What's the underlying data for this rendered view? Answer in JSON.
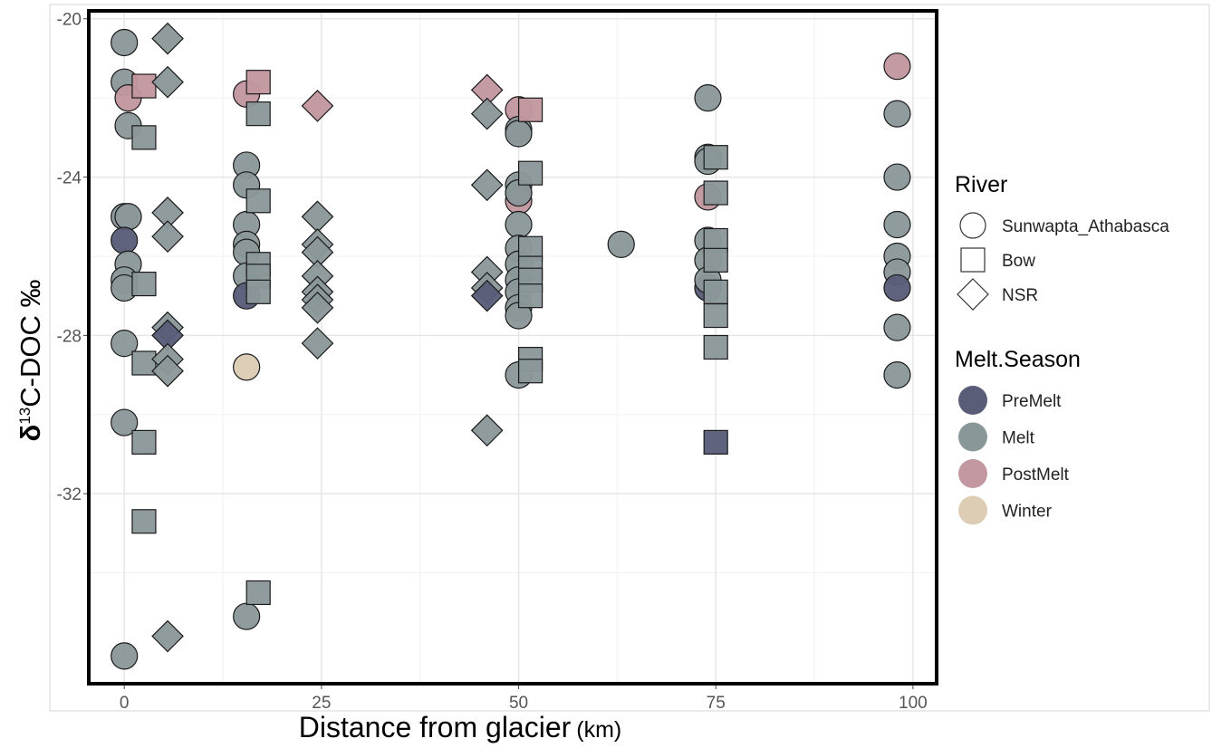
{
  "chart_data": {
    "type": "scatter",
    "title": "",
    "xlabel": "Distance from glacier",
    "xlabel_unit": "(km)",
    "ylabel": "δ13C-DOC ‰",
    "ylabel_parts": {
      "delta": "δ",
      "sup": "13",
      "rest": "C-DOC ‰"
    },
    "xlim": [
      -4.5,
      103
    ],
    "ylim": [
      -36.8,
      -19.8
    ],
    "x_ticks": [
      0,
      25,
      50,
      75,
      100
    ],
    "x_tick_labels": [
      "0",
      "25",
      "50",
      "75",
      "100"
    ],
    "y_ticks": [
      -20,
      -24,
      -28,
      -32
    ],
    "y_tick_labels": [
      "-20",
      "-24",
      "-28",
      "-32"
    ],
    "grid": true,
    "legend_position": "right",
    "legends": {
      "river": {
        "title": "River",
        "items": [
          {
            "label": "Sunwapta_Athabasca",
            "shape": "circle"
          },
          {
            "label": "Bow",
            "shape": "square"
          },
          {
            "label": "NSR",
            "shape": "diamond"
          }
        ]
      },
      "season": {
        "title": "Melt.Season",
        "items": [
          {
            "label": "PreMelt",
            "color": "#5a5d78"
          },
          {
            "label": "Melt",
            "color": "#8a9799"
          },
          {
            "label": "PostMelt",
            "color": "#c3979f"
          },
          {
            "label": "Winter",
            "color": "#dccdb4"
          }
        ]
      }
    },
    "colors": {
      "PreMelt": "#5a5d78",
      "Melt": "#8a9799",
      "PostMelt": "#c3979f",
      "Winter": "#dccdb4"
    },
    "series": [
      {
        "river": "Sunwapta_Athabasca",
        "points": [
          {
            "x": 0,
            "y": -20.6,
            "season": "Melt"
          },
          {
            "x": 0,
            "y": -21.6,
            "season": "Melt"
          },
          {
            "x": 0.5,
            "y": -22.0,
            "season": "PostMelt"
          },
          {
            "x": 0.5,
            "y": -22.7,
            "season": "Melt"
          },
          {
            "x": 0,
            "y": -25.0,
            "season": "Melt"
          },
          {
            "x": 0.5,
            "y": -25.0,
            "season": "Melt"
          },
          {
            "x": 0,
            "y": -25.6,
            "season": "PreMelt"
          },
          {
            "x": 0.5,
            "y": -26.2,
            "season": "Melt"
          },
          {
            "x": 0,
            "y": -26.6,
            "season": "Melt"
          },
          {
            "x": 0,
            "y": -26.8,
            "season": "Melt"
          },
          {
            "x": 0,
            "y": -28.2,
            "season": "Melt"
          },
          {
            "x": 0,
            "y": -30.2,
            "season": "Melt"
          },
          {
            "x": 0,
            "y": -36.1,
            "season": "Melt"
          },
          {
            "x": 15.5,
            "y": -21.9,
            "season": "PostMelt"
          },
          {
            "x": 15.5,
            "y": -23.7,
            "season": "Melt"
          },
          {
            "x": 15.5,
            "y": -24.2,
            "season": "Melt"
          },
          {
            "x": 15.5,
            "y": -25.2,
            "season": "Melt"
          },
          {
            "x": 15.5,
            "y": -25.7,
            "season": "Melt"
          },
          {
            "x": 15.5,
            "y": -25.9,
            "season": "Melt"
          },
          {
            "x": 15.5,
            "y": -26.5,
            "season": "Melt"
          },
          {
            "x": 15.5,
            "y": -27.0,
            "season": "PreMelt"
          },
          {
            "x": 15.5,
            "y": -28.8,
            "season": "Winter"
          },
          {
            "x": 15.5,
            "y": -35.1,
            "season": "Melt"
          },
          {
            "x": 50,
            "y": -22.3,
            "season": "PostMelt"
          },
          {
            "x": 50,
            "y": -22.8,
            "season": "Melt"
          },
          {
            "x": 50,
            "y": -22.9,
            "season": "Melt"
          },
          {
            "x": 50,
            "y": -24.2,
            "season": "Melt"
          },
          {
            "x": 50,
            "y": -24.4,
            "season": "Melt"
          },
          {
            "x": 50,
            "y": -24.6,
            "season": "PostMelt"
          },
          {
            "x": 50,
            "y": -24.4,
            "season": "Melt"
          },
          {
            "x": 50,
            "y": -25.2,
            "season": "Melt"
          },
          {
            "x": 50,
            "y": -25.8,
            "season": "Melt"
          },
          {
            "x": 50,
            "y": -26.2,
            "season": "Melt"
          },
          {
            "x": 50,
            "y": -26.6,
            "season": "Melt"
          },
          {
            "x": 50,
            "y": -26.9,
            "season": "Melt"
          },
          {
            "x": 50,
            "y": -27.3,
            "season": "Melt"
          },
          {
            "x": 50,
            "y": -27.5,
            "season": "Melt"
          },
          {
            "x": 50,
            "y": -29.0,
            "season": "Melt"
          },
          {
            "x": 63,
            "y": -25.7,
            "season": "Melt"
          },
          {
            "x": 74,
            "y": -22.0,
            "season": "Melt"
          },
          {
            "x": 74,
            "y": -23.5,
            "season": "Melt"
          },
          {
            "x": 74,
            "y": -23.6,
            "season": "Melt"
          },
          {
            "x": 74,
            "y": -24.5,
            "season": "PostMelt"
          },
          {
            "x": 74,
            "y": -25.6,
            "season": "Melt"
          },
          {
            "x": 74,
            "y": -26.1,
            "season": "Melt"
          },
          {
            "x": 74,
            "y": -26.8,
            "season": "PreMelt"
          },
          {
            "x": 74,
            "y": -26.6,
            "season": "Melt"
          },
          {
            "x": 98,
            "y": -21.2,
            "season": "PostMelt"
          },
          {
            "x": 98,
            "y": -22.4,
            "season": "Melt"
          },
          {
            "x": 98,
            "y": -24.0,
            "season": "Melt"
          },
          {
            "x": 98,
            "y": -25.2,
            "season": "Melt"
          },
          {
            "x": 98,
            "y": -26.0,
            "season": "Melt"
          },
          {
            "x": 98,
            "y": -26.4,
            "season": "Melt"
          },
          {
            "x": 98,
            "y": -26.8,
            "season": "PreMelt"
          },
          {
            "x": 98,
            "y": -27.8,
            "season": "Melt"
          },
          {
            "x": 98,
            "y": -29.0,
            "season": "Melt"
          }
        ]
      },
      {
        "river": "Bow",
        "points": [
          {
            "x": 2.5,
            "y": -21.7,
            "season": "PostMelt"
          },
          {
            "x": 2.5,
            "y": -23.0,
            "season": "Melt"
          },
          {
            "x": 2.5,
            "y": -26.7,
            "season": "Melt"
          },
          {
            "x": 2.5,
            "y": -28.7,
            "season": "Melt"
          },
          {
            "x": 2.5,
            "y": -30.7,
            "season": "Melt"
          },
          {
            "x": 2.5,
            "y": -32.7,
            "season": "Melt"
          },
          {
            "x": 17,
            "y": -21.6,
            "season": "PostMelt"
          },
          {
            "x": 17,
            "y": -22.4,
            "season": "Melt"
          },
          {
            "x": 17,
            "y": -24.6,
            "season": "Melt"
          },
          {
            "x": 17,
            "y": -26.2,
            "season": "Melt"
          },
          {
            "x": 17,
            "y": -26.5,
            "season": "Melt"
          },
          {
            "x": 17,
            "y": -26.9,
            "season": "Melt"
          },
          {
            "x": 17,
            "y": -34.5,
            "season": "Melt"
          },
          {
            "x": 51.5,
            "y": -22.3,
            "season": "PostMelt"
          },
          {
            "x": 51.5,
            "y": -23.9,
            "season": "Melt"
          },
          {
            "x": 51.5,
            "y": -25.8,
            "season": "Melt"
          },
          {
            "x": 51.5,
            "y": -26.3,
            "season": "Melt"
          },
          {
            "x": 51.5,
            "y": -26.6,
            "season": "Melt"
          },
          {
            "x": 51.5,
            "y": -27.0,
            "season": "Melt"
          },
          {
            "x": 51.5,
            "y": -28.6,
            "season": "Melt"
          },
          {
            "x": 51.5,
            "y": -28.9,
            "season": "Melt"
          },
          {
            "x": 75,
            "y": -23.5,
            "season": "Melt"
          },
          {
            "x": 75,
            "y": -24.4,
            "season": "Melt"
          },
          {
            "x": 75,
            "y": -25.6,
            "season": "Melt"
          },
          {
            "x": 75,
            "y": -26.1,
            "season": "Melt"
          },
          {
            "x": 75,
            "y": -26.9,
            "season": "Melt"
          },
          {
            "x": 75,
            "y": -27.5,
            "season": "Melt"
          },
          {
            "x": 75,
            "y": -28.3,
            "season": "Melt"
          },
          {
            "x": 75,
            "y": -30.7,
            "season": "PreMelt"
          }
        ]
      },
      {
        "river": "NSR",
        "points": [
          {
            "x": 5.5,
            "y": -20.5,
            "season": "Melt"
          },
          {
            "x": 5.5,
            "y": -21.6,
            "season": "Melt"
          },
          {
            "x": 5.5,
            "y": -24.9,
            "season": "Melt"
          },
          {
            "x": 5.5,
            "y": -25.5,
            "season": "Melt"
          },
          {
            "x": 5.5,
            "y": -27.8,
            "season": "Melt"
          },
          {
            "x": 5.5,
            "y": -28.0,
            "season": "PreMelt"
          },
          {
            "x": 5.5,
            "y": -28.6,
            "season": "Melt"
          },
          {
            "x": 5.5,
            "y": -28.9,
            "season": "Melt"
          },
          {
            "x": 5.5,
            "y": -35.6,
            "season": "Melt"
          },
          {
            "x": 24.5,
            "y": -22.2,
            "season": "PostMelt"
          },
          {
            "x": 24.5,
            "y": -25.0,
            "season": "Melt"
          },
          {
            "x": 24.5,
            "y": -25.7,
            "season": "Melt"
          },
          {
            "x": 24.5,
            "y": -25.9,
            "season": "Melt"
          },
          {
            "x": 24.5,
            "y": -26.5,
            "season": "Melt"
          },
          {
            "x": 24.5,
            "y": -26.9,
            "season": "Melt"
          },
          {
            "x": 24.5,
            "y": -27.1,
            "season": "Melt"
          },
          {
            "x": 24.5,
            "y": -27.3,
            "season": "Melt"
          },
          {
            "x": 24.5,
            "y": -28.2,
            "season": "Melt"
          },
          {
            "x": 46,
            "y": -21.8,
            "season": "PostMelt"
          },
          {
            "x": 46,
            "y": -22.4,
            "season": "Melt"
          },
          {
            "x": 46,
            "y": -24.2,
            "season": "Melt"
          },
          {
            "x": 46,
            "y": -26.4,
            "season": "Melt"
          },
          {
            "x": 46,
            "y": -26.8,
            "season": "Melt"
          },
          {
            "x": 46,
            "y": -27.0,
            "season": "PreMelt"
          },
          {
            "x": 46,
            "y": -30.4,
            "season": "Melt"
          }
        ]
      }
    ]
  }
}
